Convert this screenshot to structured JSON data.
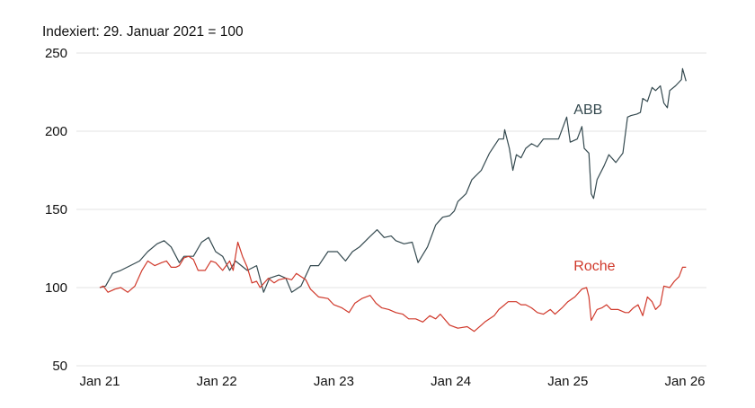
{
  "chart_data": {
    "type": "line",
    "title": "Indexiert: 29. Januar 2021 = 100",
    "xlabel": "",
    "ylabel": "",
    "ylim": [
      50,
      250
    ],
    "xlim": [
      2021.0,
      2026.0
    ],
    "grid": true,
    "y_ticks": [
      {
        "value": 50,
        "label": "50"
      },
      {
        "value": 100,
        "label": "100"
      },
      {
        "value": 150,
        "label": "150"
      },
      {
        "value": 200,
        "label": "200"
      },
      {
        "value": 250,
        "label": "250"
      }
    ],
    "x_ticks": [
      {
        "value": 2021,
        "label": "Jan 21"
      },
      {
        "value": 2022,
        "label": "Jan 22"
      },
      {
        "value": 2023,
        "label": "Jan 23"
      },
      {
        "value": 2024,
        "label": "Jan 24"
      },
      {
        "value": 2025,
        "label": "Jan 25"
      },
      {
        "value": 2026,
        "label": "Jan 26"
      }
    ],
    "series": [
      {
        "name": "ABB",
        "color": "#34494f",
        "label_at": [
          2025.05,
          211
        ],
        "points": [
          [
            2021.0,
            100
          ],
          [
            2021.05,
            101
          ],
          [
            2021.11,
            109
          ],
          [
            2021.18,
            111
          ],
          [
            2021.26,
            114
          ],
          [
            2021.34,
            117
          ],
          [
            2021.41,
            123
          ],
          [
            2021.49,
            128
          ],
          [
            2021.55,
            130
          ],
          [
            2021.61,
            126
          ],
          [
            2021.68,
            116
          ],
          [
            2021.72,
            120
          ],
          [
            2021.8,
            120
          ],
          [
            2021.87,
            129
          ],
          [
            2021.93,
            132
          ],
          [
            2021.99,
            123
          ],
          [
            2022.05,
            120
          ],
          [
            2022.11,
            111
          ],
          [
            2022.16,
            117
          ],
          [
            2022.21,
            114
          ],
          [
            2022.26,
            111
          ],
          [
            2022.34,
            114
          ],
          [
            2022.4,
            97
          ],
          [
            2022.45,
            106
          ],
          [
            2022.53,
            108
          ],
          [
            2022.59,
            106
          ],
          [
            2022.64,
            97
          ],
          [
            2022.72,
            101
          ],
          [
            2022.8,
            114
          ],
          [
            2022.87,
            114
          ],
          [
            2022.95,
            123
          ],
          [
            2023.03,
            123
          ],
          [
            2023.1,
            117
          ],
          [
            2023.16,
            123
          ],
          [
            2023.22,
            126
          ],
          [
            2023.3,
            132
          ],
          [
            2023.37,
            137
          ],
          [
            2023.43,
            132
          ],
          [
            2023.49,
            133
          ],
          [
            2023.53,
            130
          ],
          [
            2023.6,
            128
          ],
          [
            2023.67,
            129
          ],
          [
            2023.72,
            116
          ],
          [
            2023.8,
            126
          ],
          [
            2023.87,
            140
          ],
          [
            2023.93,
            145
          ],
          [
            2023.99,
            146
          ],
          [
            2024.03,
            149
          ],
          [
            2024.06,
            155
          ],
          [
            2024.13,
            160
          ],
          [
            2024.18,
            169
          ],
          [
            2024.26,
            175
          ],
          [
            2024.33,
            186
          ],
          [
            2024.41,
            195
          ],
          [
            2024.45,
            195
          ],
          [
            2024.46,
            201
          ],
          [
            2024.5,
            189
          ],
          [
            2024.53,
            175
          ],
          [
            2024.56,
            185
          ],
          [
            2024.6,
            183
          ],
          [
            2024.64,
            189
          ],
          [
            2024.69,
            192
          ],
          [
            2024.74,
            190
          ],
          [
            2024.79,
            195
          ],
          [
            2024.87,
            195
          ],
          [
            2024.92,
            195
          ],
          [
            2024.99,
            209
          ],
          [
            2025.02,
            193
          ],
          [
            2025.08,
            195
          ],
          [
            2025.12,
            203
          ],
          [
            2025.14,
            189
          ],
          [
            2025.18,
            186
          ],
          [
            2025.2,
            160
          ],
          [
            2025.22,
            157
          ],
          [
            2025.25,
            169
          ],
          [
            2025.31,
            178
          ],
          [
            2025.35,
            185
          ],
          [
            2025.41,
            180
          ],
          [
            2025.45,
            184
          ],
          [
            2025.47,
            186
          ],
          [
            2025.51,
            209
          ],
          [
            2025.54,
            210
          ],
          [
            2025.59,
            211
          ],
          [
            2025.62,
            212
          ],
          [
            2025.64,
            221
          ],
          [
            2025.68,
            219
          ],
          [
            2025.72,
            228
          ],
          [
            2025.75,
            226
          ],
          [
            2025.79,
            229
          ],
          [
            2025.82,
            218
          ],
          [
            2025.85,
            215
          ],
          [
            2025.87,
            226
          ],
          [
            2025.92,
            229
          ],
          [
            2025.97,
            233
          ],
          [
            2025.98,
            240
          ],
          [
            2026.01,
            232
          ]
        ]
      },
      {
        "name": "Roche",
        "color": "#d0392b",
        "label_at": [
          2025.05,
          111
        ],
        "points": [
          [
            2021.0,
            100
          ],
          [
            2021.03,
            101
          ],
          [
            2021.07,
            97
          ],
          [
            2021.13,
            99
          ],
          [
            2021.18,
            100
          ],
          [
            2021.24,
            97
          ],
          [
            2021.3,
            101
          ],
          [
            2021.36,
            111
          ],
          [
            2021.41,
            117
          ],
          [
            2021.47,
            114
          ],
          [
            2021.53,
            116
          ],
          [
            2021.57,
            117
          ],
          [
            2021.61,
            113
          ],
          [
            2021.65,
            113
          ],
          [
            2021.68,
            114
          ],
          [
            2021.72,
            119
          ],
          [
            2021.76,
            120
          ],
          [
            2021.8,
            118
          ],
          [
            2021.84,
            111
          ],
          [
            2021.9,
            111
          ],
          [
            2021.95,
            117
          ],
          [
            2021.99,
            116
          ],
          [
            2022.05,
            111
          ],
          [
            2022.11,
            117
          ],
          [
            2022.14,
            111
          ],
          [
            2022.18,
            129
          ],
          [
            2022.22,
            120
          ],
          [
            2022.26,
            113
          ],
          [
            2022.3,
            103
          ],
          [
            2022.34,
            104
          ],
          [
            2022.37,
            100
          ],
          [
            2022.44,
            106
          ],
          [
            2022.49,
            103
          ],
          [
            2022.53,
            105
          ],
          [
            2022.59,
            106
          ],
          [
            2022.64,
            105
          ],
          [
            2022.68,
            109
          ],
          [
            2022.72,
            107
          ],
          [
            2022.76,
            105
          ],
          [
            2022.8,
            99
          ],
          [
            2022.87,
            94
          ],
          [
            2022.95,
            93
          ],
          [
            2023.0,
            89
          ],
          [
            2023.07,
            87
          ],
          [
            2023.13,
            84
          ],
          [
            2023.18,
            90
          ],
          [
            2023.24,
            93
          ],
          [
            2023.31,
            95
          ],
          [
            2023.36,
            90
          ],
          [
            2023.41,
            87
          ],
          [
            2023.47,
            86
          ],
          [
            2023.53,
            84
          ],
          [
            2023.59,
            83
          ],
          [
            2023.64,
            80
          ],
          [
            2023.7,
            80
          ],
          [
            2023.76,
            78
          ],
          [
            2023.82,
            82
          ],
          [
            2023.87,
            80
          ],
          [
            2023.91,
            83
          ],
          [
            2023.99,
            76
          ],
          [
            2024.06,
            74
          ],
          [
            2024.14,
            75
          ],
          [
            2024.2,
            72
          ],
          [
            2024.26,
            76
          ],
          [
            2024.29,
            78
          ],
          [
            2024.37,
            82
          ],
          [
            2024.41,
            86
          ],
          [
            2024.46,
            89
          ],
          [
            2024.49,
            91
          ],
          [
            2024.56,
            91
          ],
          [
            2024.6,
            89
          ],
          [
            2024.64,
            89
          ],
          [
            2024.69,
            87
          ],
          [
            2024.74,
            84
          ],
          [
            2024.79,
            83
          ],
          [
            2024.85,
            86
          ],
          [
            2024.89,
            83
          ],
          [
            2024.95,
            87
          ],
          [
            2025.0,
            91
          ],
          [
            2025.06,
            94
          ],
          [
            2025.12,
            99
          ],
          [
            2025.16,
            100
          ],
          [
            2025.18,
            94
          ],
          [
            2025.2,
            79
          ],
          [
            2025.25,
            86
          ],
          [
            2025.29,
            87
          ],
          [
            2025.33,
            89
          ],
          [
            2025.37,
            86
          ],
          [
            2025.43,
            86
          ],
          [
            2025.49,
            84
          ],
          [
            2025.52,
            84
          ],
          [
            2025.56,
            87
          ],
          [
            2025.6,
            89
          ],
          [
            2025.64,
            82
          ],
          [
            2025.68,
            94
          ],
          [
            2025.72,
            91
          ],
          [
            2025.75,
            86
          ],
          [
            2025.79,
            89
          ],
          [
            2025.82,
            101
          ],
          [
            2025.87,
            100
          ],
          [
            2025.91,
            104
          ],
          [
            2025.95,
            107
          ],
          [
            2025.98,
            113
          ],
          [
            2026.01,
            113
          ]
        ]
      }
    ]
  }
}
